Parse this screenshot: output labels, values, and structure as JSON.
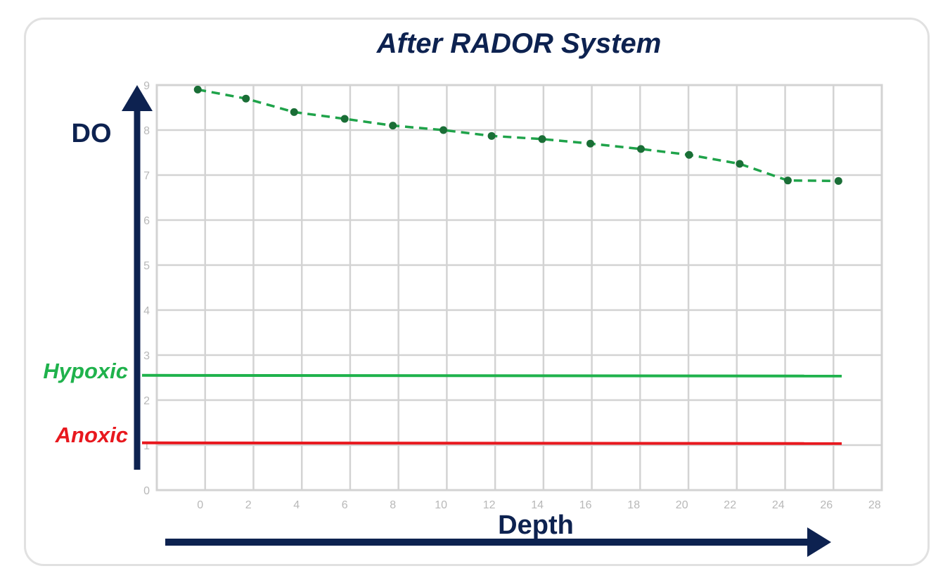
{
  "chart_data": {
    "type": "line",
    "title": "After RADOR System",
    "xlabel": "Depth",
    "ylabel": "DO",
    "x_ticks": [
      0,
      2,
      4,
      6,
      8,
      10,
      12,
      14,
      16,
      18,
      20,
      22,
      24,
      26,
      28
    ],
    "y_ticks": [
      0,
      1,
      2,
      3,
      4,
      5,
      6,
      7,
      8,
      9
    ],
    "xlim": [
      -1.8,
      28.3
    ],
    "ylim": [
      0,
      9
    ],
    "grid": true,
    "series": [
      {
        "color": "#1fa34a",
        "marker_color": "#1a6e36",
        "line_style": "dashed",
        "x": [
          -0.1,
          1.9,
          3.9,
          6.0,
          8.0,
          10.1,
          12.1,
          14.2,
          16.2,
          18.3,
          20.3,
          22.4,
          24.4,
          26.5
        ],
        "y": [
          8.9,
          8.7,
          8.4,
          8.25,
          8.1,
          8.0,
          7.87,
          7.8,
          7.7,
          7.58,
          7.45,
          7.25,
          6.88,
          6.87
        ]
      }
    ],
    "reference_lines": [
      {
        "label": "Hypoxic",
        "y": 2.55,
        "color": "#1fb24c"
      },
      {
        "label": "Anoxic",
        "y": 1.05,
        "color": "#e8181e"
      }
    ],
    "axis_color": "#0d2250",
    "title_color": "#0d2250"
  }
}
